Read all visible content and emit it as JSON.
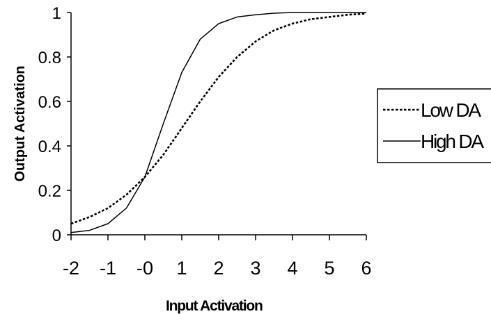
{
  "chart_data": {
    "type": "line",
    "xlabel": "Input Activation",
    "ylabel": "Output Activation",
    "xlim": [
      -2,
      6
    ],
    "ylim": [
      0,
      1
    ],
    "x_ticks": [
      "-2",
      "-1",
      "-0",
      "1",
      "2",
      "3",
      "4",
      "5",
      "6"
    ],
    "y_ticks": [
      "0",
      "0.2",
      "0.4",
      "0.6",
      "0.8",
      "1"
    ],
    "grid": false,
    "legend": "right",
    "series": [
      {
        "name": "Low DA",
        "style": "dotted",
        "x": [
          -2,
          -1.5,
          -1,
          -0.5,
          0,
          0.5,
          1,
          1.5,
          2,
          2.5,
          3,
          3.5,
          4,
          4.5,
          5,
          5.5,
          6
        ],
        "y": [
          0.05,
          0.08,
          0.12,
          0.18,
          0.26,
          0.36,
          0.48,
          0.6,
          0.71,
          0.8,
          0.87,
          0.92,
          0.95,
          0.97,
          0.98,
          0.99,
          0.995
        ]
      },
      {
        "name": "High DA",
        "style": "solid",
        "x": [
          -2,
          -1.5,
          -1,
          -0.5,
          0,
          0.5,
          1,
          1.5,
          2,
          2.5,
          3,
          3.5,
          4,
          4.5,
          5,
          5.5,
          6
        ],
        "y": [
          0.01,
          0.02,
          0.05,
          0.12,
          0.26,
          0.5,
          0.73,
          0.88,
          0.95,
          0.98,
          0.99,
          0.997,
          1,
          1,
          1,
          1,
          1
        ]
      }
    ]
  }
}
